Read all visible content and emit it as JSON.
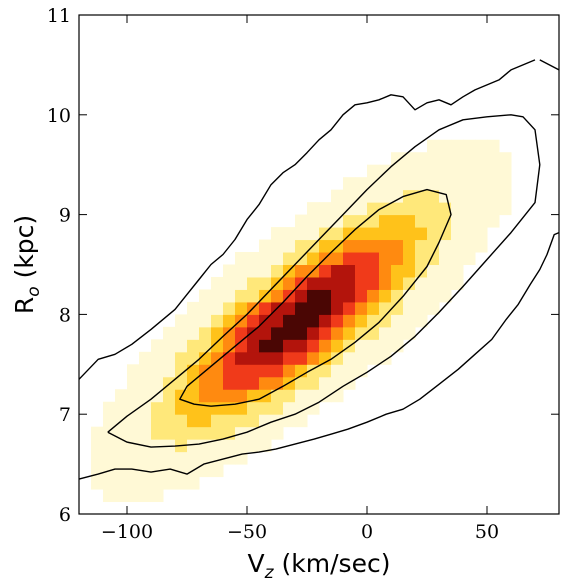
{
  "chart_data": {
    "type": "heatmap",
    "title": "",
    "xlabel_main": "V",
    "xlabel_sub": "z",
    "xlabel_unit": " (km/sec)",
    "ylabel_main": "R",
    "ylabel_sub": "o",
    "ylabel_unit": " (kpc)",
    "xlim": [
      -120,
      80
    ],
    "ylim": [
      6,
      11
    ],
    "xticks": [
      -100,
      -50,
      0,
      50
    ],
    "xtick_labels": [
      "−100",
      "−50",
      "0",
      "50"
    ],
    "yticks": [
      6,
      7,
      8,
      9,
      10,
      11
    ],
    "ytick_labels": [
      "6",
      "7",
      "8",
      "9",
      "10",
      "11"
    ],
    "colormap": [
      "#ffffff",
      "#fff9d6",
      "#ffe87a",
      "#ffc21a",
      "#ff8a10",
      "#f03a1a",
      "#b3140c",
      "#4a0604"
    ],
    "grid": false,
    "legend": "none",
    "density_model": {
      "center_vz": -28,
      "center_r": 7.95,
      "slope_kpc_per_kms": 0.0165,
      "sigma_along_vz": 32,
      "sigma_perp_kpc": 0.38
    },
    "contours": [
      {
        "name": "inner",
        "vz": [
          -65,
          -55,
          -45,
          -35,
          -25,
          -15,
          -5,
          5,
          15,
          25,
          30,
          35,
          33,
          25,
          15,
          5,
          -5,
          -15,
          -25,
          -35,
          -45,
          -55,
          -65,
          -75,
          -78,
          -72,
          -65
        ],
        "r": [
          7.08,
          7.1,
          7.15,
          7.28,
          7.42,
          7.55,
          7.72,
          7.92,
          8.18,
          8.48,
          8.72,
          9.0,
          9.2,
          9.25,
          9.18,
          9.05,
          8.85,
          8.62,
          8.38,
          8.12,
          7.88,
          7.68,
          7.48,
          7.28,
          7.15,
          7.1,
          7.08
        ]
      },
      {
        "name": "middle",
        "vz": [
          -108,
          -100,
          -90,
          -80,
          -70,
          -60,
          -50,
          -40,
          -30,
          -20,
          -10,
          0,
          10,
          20,
          30,
          40,
          50,
          60,
          70,
          72,
          70,
          65,
          60,
          50,
          40,
          30,
          20,
          10,
          0,
          -10,
          -20,
          -30,
          -40,
          -50,
          -60,
          -70,
          -80,
          -90,
          -100,
          -108
        ],
        "r": [
          6.82,
          6.72,
          6.67,
          6.68,
          6.7,
          6.75,
          6.82,
          6.92,
          7.0,
          7.12,
          7.28,
          7.42,
          7.58,
          7.78,
          8.02,
          8.28,
          8.55,
          8.82,
          9.12,
          9.5,
          9.85,
          9.98,
          10.0,
          9.98,
          9.95,
          9.85,
          9.68,
          9.48,
          9.25,
          9.0,
          8.75,
          8.5,
          8.25,
          8.0,
          7.78,
          7.55,
          7.35,
          7.15,
          6.98,
          6.82
        ]
      },
      {
        "name": "outer-upper",
        "vz": [
          -120,
          -112,
          -105,
          -98,
          -90,
          -85,
          -80,
          -75,
          -70,
          -65,
          -60,
          -55,
          -50,
          -45,
          -40,
          -35,
          -30,
          -25,
          -20,
          -15,
          -10,
          -5,
          0,
          5,
          10,
          15,
          20,
          25,
          30,
          35,
          40,
          45,
          50,
          55,
          60,
          65,
          70
        ],
        "r": [
          7.35,
          7.55,
          7.6,
          7.7,
          7.85,
          7.95,
          8.05,
          8.2,
          8.35,
          8.5,
          8.6,
          8.75,
          8.95,
          9.1,
          9.3,
          9.42,
          9.5,
          9.62,
          9.75,
          9.85,
          10.0,
          10.1,
          10.12,
          10.15,
          10.2,
          10.18,
          10.05,
          10.12,
          10.15,
          10.1,
          10.18,
          10.25,
          10.3,
          10.35,
          10.45,
          10.5,
          10.55
        ]
      },
      {
        "name": "outer-lower",
        "vz": [
          -120,
          -112,
          -105,
          -98,
          -90,
          -82,
          -75,
          -68,
          -60,
          -52,
          -45,
          -38,
          -30,
          -22,
          -15,
          -8,
          0,
          8,
          15,
          22,
          30,
          38,
          45,
          52,
          58,
          63,
          68,
          72,
          75,
          78,
          80
        ],
        "r": [
          6.35,
          6.4,
          6.45,
          6.45,
          6.42,
          6.45,
          6.4,
          6.5,
          6.55,
          6.6,
          6.62,
          6.65,
          6.7,
          6.75,
          6.8,
          6.85,
          6.92,
          7.0,
          7.05,
          7.15,
          7.3,
          7.45,
          7.6,
          7.75,
          7.95,
          8.1,
          8.3,
          8.45,
          8.6,
          8.8,
          8.82
        ]
      },
      {
        "name": "outer-corner",
        "vz": [
          72,
          76,
          80
        ],
        "r": [
          10.55,
          10.5,
          10.45
        ]
      }
    ]
  }
}
